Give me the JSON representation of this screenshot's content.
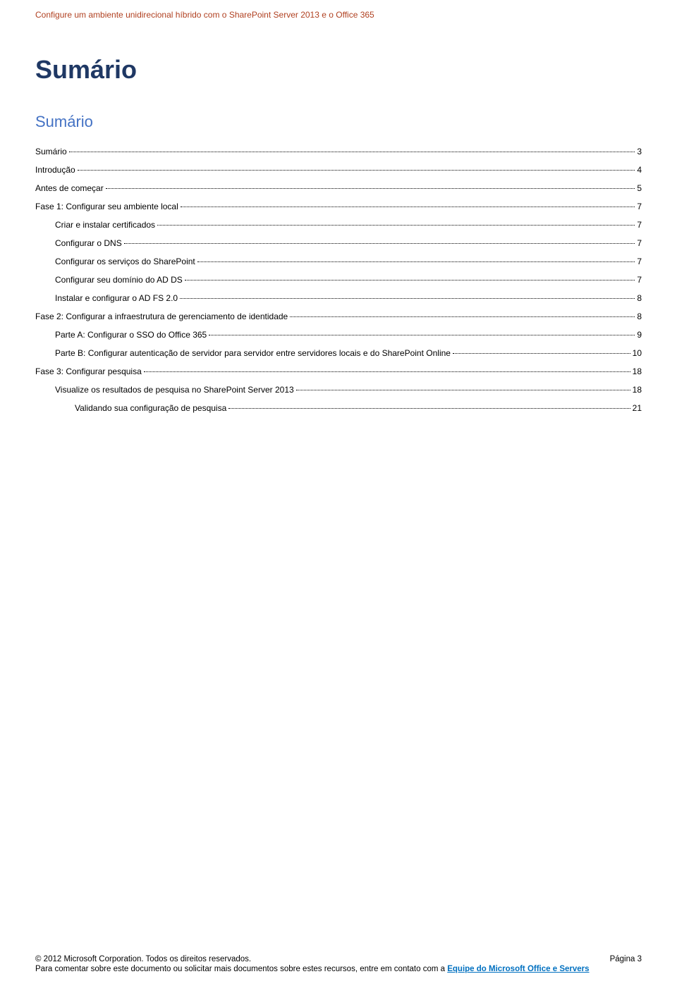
{
  "header": {
    "text": "Configure um ambiente unidirecional híbrido com o SharePoint Server 2013 e o Office 365"
  },
  "titles": {
    "main": "Sumário",
    "sub": "Sumário"
  },
  "toc": {
    "entries": [
      {
        "label": "Sumário",
        "page": "3",
        "indent": 0
      },
      {
        "label": "Introdução",
        "page": "4",
        "indent": 0
      },
      {
        "label": "Antes de começar",
        "page": "5",
        "indent": 0
      },
      {
        "label": "Fase 1: Configurar seu ambiente local",
        "page": "7",
        "indent": 0
      },
      {
        "label": "Criar e instalar certificados",
        "page": "7",
        "indent": 1
      },
      {
        "label": "Configurar o DNS",
        "page": "7",
        "indent": 1
      },
      {
        "label": "Configurar os serviços do SharePoint",
        "page": "7",
        "indent": 1
      },
      {
        "label": "Configurar seu domínio do AD DS",
        "page": "7",
        "indent": 1
      },
      {
        "label": "Instalar e configurar o AD FS 2.0",
        "page": "8",
        "indent": 1
      },
      {
        "label": "Fase 2: Configurar a infraestrutura de gerenciamento de identidade",
        "page": "8",
        "indent": 0
      },
      {
        "label": "Parte A: Configurar o SSO do Office 365",
        "page": "9",
        "indent": 1
      },
      {
        "label": "Parte B: Configurar autenticação de servidor para servidor entre servidores locais e do SharePoint Online",
        "page": "10",
        "indent": 1
      },
      {
        "label": "Fase 3: Configurar pesquisa",
        "page": "18",
        "indent": 0
      },
      {
        "label": "Visualize os resultados de pesquisa no SharePoint Server 2013",
        "page": "18",
        "indent": 1
      },
      {
        "label": "Validando sua configuração de pesquisa",
        "page": "21",
        "indent": 2
      }
    ]
  },
  "footer": {
    "copyright": "© 2012 Microsoft Corporation. Todos os direitos reservados.",
    "pagelabel": "Página 3",
    "line2_pre": "Para comentar sobre este documento ou solicitar mais documentos sobre estes recursos, entre em contato com a ",
    "link": "Equipe do Microsoft Office e Servers"
  },
  "style": {
    "header_color": "#b04020",
    "title_main_color": "#1f3864",
    "title_sub_color": "#4472c4",
    "link_color": "#0070c0",
    "background": "#ffffff"
  }
}
